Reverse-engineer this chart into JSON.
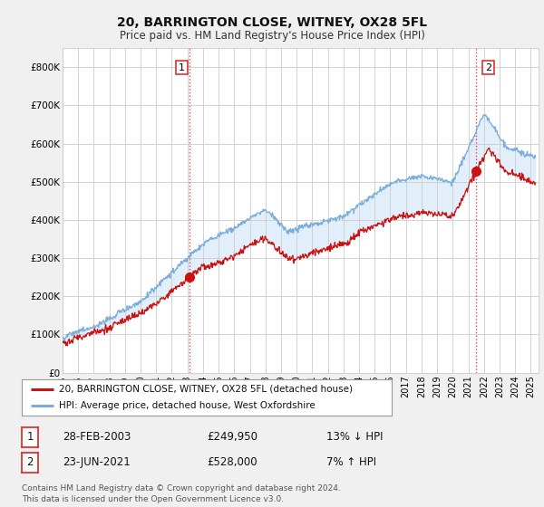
{
  "title": "20, BARRINGTON CLOSE, WITNEY, OX28 5FL",
  "subtitle": "Price paid vs. HM Land Registry's House Price Index (HPI)",
  "title_fontsize": 10,
  "subtitle_fontsize": 8.5,
  "bg_color": "#f0f0f0",
  "plot_bg_color": "#ffffff",
  "yticks": [
    0,
    100000,
    200000,
    300000,
    400000,
    500000,
    600000,
    700000,
    800000
  ],
  "ytick_labels": [
    "£0",
    "£100K",
    "£200K",
    "£300K",
    "£400K",
    "£500K",
    "£600K",
    "£700K",
    "£800K"
  ],
  "hpi_color": "#7aaddc",
  "hpi_fill_color": "#d6e8f7",
  "price_color": "#cc1111",
  "sale1_date": 2003.15,
  "sale1_price": 249950,
  "sale2_date": 2021.48,
  "sale2_price": 528000,
  "vline_color": "#dd3333",
  "legend_label1": "20, BARRINGTON CLOSE, WITNEY, OX28 5FL (detached house)",
  "legend_label2": "HPI: Average price, detached house, West Oxfordshire",
  "table_row1": [
    "1",
    "28-FEB-2003",
    "£249,950",
    "13% ↓ HPI"
  ],
  "table_row2": [
    "2",
    "23-JUN-2021",
    "£528,000",
    "7% ↑ HPI"
  ],
  "footer": "Contains HM Land Registry data © Crown copyright and database right 2024.\nThis data is licensed under the Open Government Licence v3.0.",
  "xmin": 1995.0,
  "xmax": 2025.5,
  "ymin": 0,
  "ymax": 850000
}
